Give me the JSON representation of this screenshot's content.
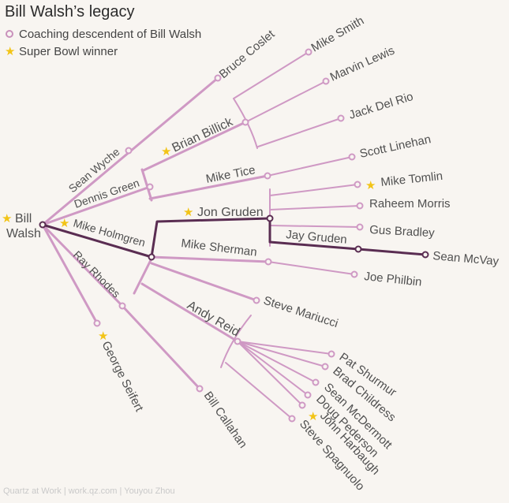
{
  "title": "Bill Walsh’s legacy",
  "legend": {
    "descendant": "Coaching descendent of Bill Walsh",
    "winner": "Super Bowl winner"
  },
  "colors": {
    "branch": "#cf99c4",
    "highlight": "#5a2d52",
    "star": "#f2c417"
  },
  "root": {
    "line1": "Bill",
    "line2": "Walsh"
  },
  "names": {
    "bruce_coslet": "Bruce Coslet",
    "mike_smith": "Mike Smith",
    "marvin_lewis": "Marvin Lewis",
    "jack_del_rio": "Jack Del Rio",
    "sean_wyche": "Sean Wyche",
    "brian_billick": "Brian Billick",
    "scott_linehan": "Scott Linehan",
    "dennis_green": "Dennis Green",
    "mike_tice": "Mike Tice",
    "mike_tomlin": "Mike Tomlin",
    "raheem_morris": "Raheem Morris",
    "jon_gruden": "Jon Gruden",
    "gus_bradley": "Gus Bradley",
    "mike_holmgren": "Mike Holmgren",
    "jay_gruden": "Jay Gruden",
    "sean_mcvay": "Sean McVay",
    "mike_sherman": "Mike Sherman",
    "ray_rhodes": "Ray Rhodes",
    "joe_philbin": "Joe Philbin",
    "steve_mariucci": "Steve Mariucci",
    "andy_reid": "Andy Reid",
    "george_seifert": "George Seifert",
    "pat_shurmur": "Pat Shurmur",
    "brad_childress": "Brad Childress",
    "sean_mcdermott": "Sean McDermott",
    "doug_pederson": "Doug Pederson",
    "john_harbaugh": "John Harbaugh",
    "steve_spagnuolo": "Steve Spagnuolo",
    "bill_callahan": "Bill Callahan"
  },
  "super_bowl_winners": [
    "Bill Walsh",
    "Brian Billick",
    "Mike Tomlin",
    "Jon Gruden",
    "Mike Holmgren",
    "George Seifert",
    "John Harbaugh"
  ],
  "footer": "Quartz at Work | work.qz.com | Youyou Zhou"
}
